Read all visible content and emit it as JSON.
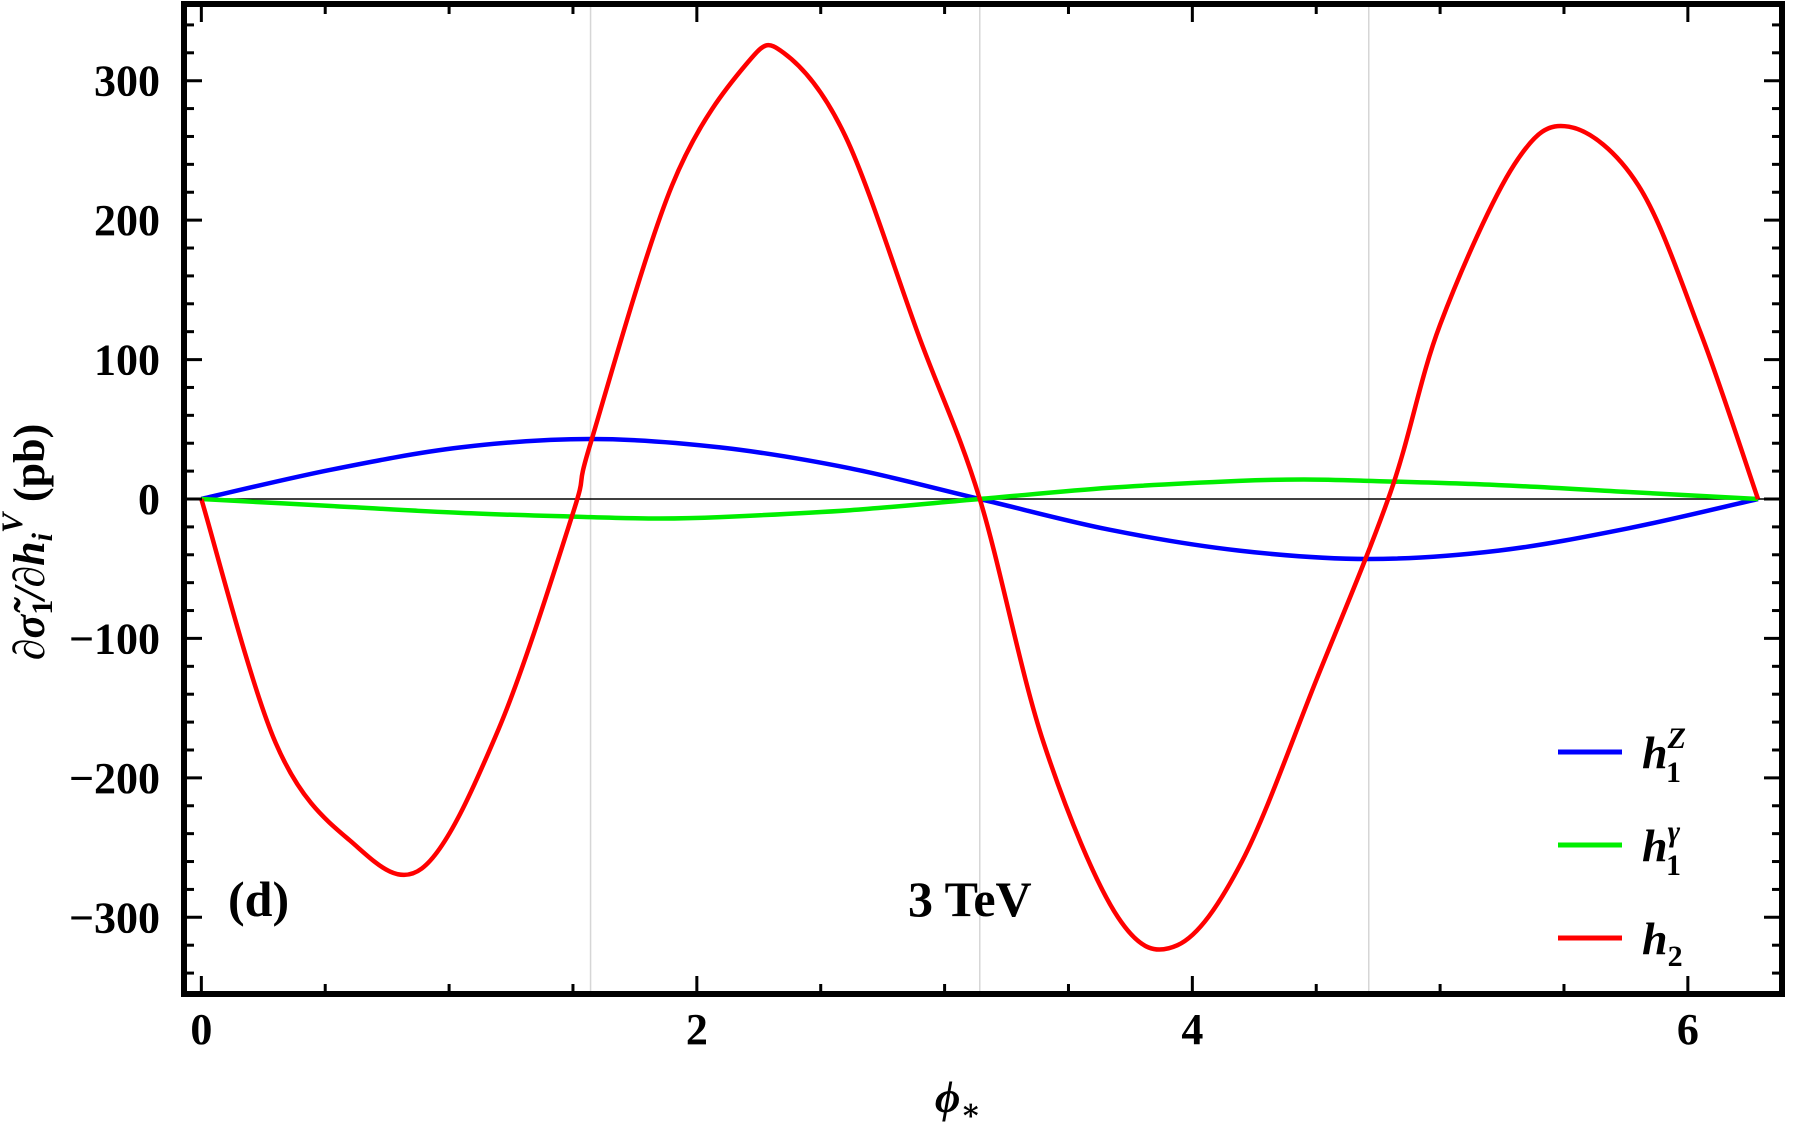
{
  "chart_data": {
    "type": "line",
    "panel_label": "(d)",
    "annotation": "3 TeV",
    "xlabel": {
      "base": "ϕ",
      "sub": "∗"
    },
    "ylabel": {
      "main": "∂σ̃",
      "sub1": "1",
      "mid": "/∂h",
      "sub2": "i",
      "sup": "V",
      "unit": " (pb)"
    },
    "xlim": [
      -0.07,
      6.38
    ],
    "ylim": [
      -355,
      355
    ],
    "x_ticks": [
      0,
      2,
      4,
      6
    ],
    "x_tick_labels": [
      "0",
      "2",
      "4",
      "6"
    ],
    "x_minor_step": 0.5,
    "y_ticks": [
      -300,
      -200,
      -100,
      0,
      100,
      200,
      300
    ],
    "y_tick_labels": [
      "−300",
      "−200",
      "−100",
      "0",
      "100",
      "200",
      "300"
    ],
    "y_minor_step": 20,
    "x_domain": [
      0,
      6.283
    ],
    "gridlines_x": [
      1.571,
      3.142,
      4.712
    ],
    "zero_line": true,
    "grid": false,
    "legend_position": "bottom-right",
    "series": [
      {
        "name": "h1Z",
        "label_base": "h",
        "label_sub": "1",
        "label_sup": "Z",
        "color": "#0000ff",
        "x": [
          0,
          0.524,
          1.047,
          1.571,
          2.094,
          2.618,
          3.142,
          3.665,
          4.189,
          4.712,
          5.236,
          5.76,
          6.283
        ],
        "y": [
          0,
          21,
          37,
          43,
          37,
          22,
          0,
          -22,
          -37,
          -43,
          -37,
          -21,
          0
        ]
      },
      {
        "name": "h1gamma",
        "label_base": "h",
        "label_sub": "1",
        "label_sup": "γ",
        "color": "#00ee00",
        "x": [
          0,
          0.524,
          1.047,
          1.571,
          1.85,
          2.094,
          2.618,
          3.142,
          3.665,
          4.189,
          4.45,
          4.712,
          5.236,
          5.76,
          6.283
        ],
        "y": [
          0,
          -5,
          -10,
          -13,
          -14,
          -13,
          -8,
          0,
          8,
          13,
          14,
          13,
          10,
          5,
          0
        ]
      },
      {
        "name": "h2",
        "label_base": "h",
        "label_sub": "2",
        "label_sup": "",
        "color": "#ff0000",
        "x": [
          0,
          0.3,
          0.6,
          0.89,
          1.2,
          1.5,
          1.571,
          1.9,
          2.2,
          2.35,
          2.6,
          2.9,
          3.142,
          3.4,
          3.7,
          3.94,
          4.2,
          4.5,
          4.8,
          5.0,
          5.3,
          5.52,
          5.8,
          6.05,
          6.283
        ],
        "y": [
          0,
          -175,
          -245,
          -265,
          -165,
          -10,
          40,
          225,
          312,
          320,
          260,
          115,
          0,
          -175,
          -300,
          -320,
          -260,
          -130,
          5,
          125,
          240,
          267,
          225,
          120,
          0
        ]
      }
    ]
  }
}
